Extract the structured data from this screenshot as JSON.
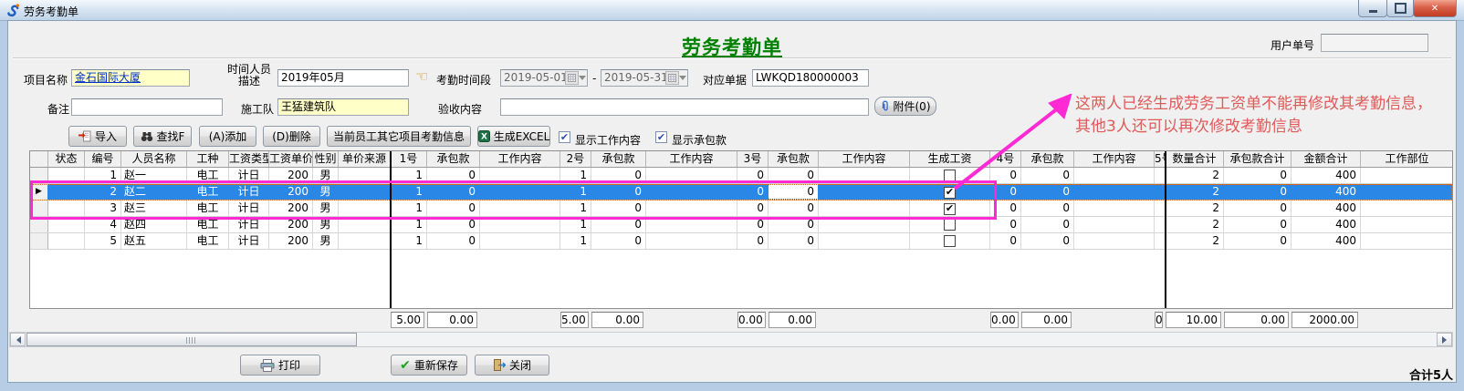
{
  "window": {
    "title": "劳务考勤单"
  },
  "header": {
    "page_title": "劳务考勤单",
    "user_no_label": "用户单号",
    "user_no_value": ""
  },
  "form": {
    "project_label": "项目名称",
    "project_value": "金石国际大厦",
    "time_desc_label_line1": "时间人员",
    "time_desc_label_line2": "描述",
    "time_desc_value": "2019年05月",
    "period_label": "考勤时间段",
    "period_start": "2019-05-01",
    "period_sep": "-",
    "period_end": "2019-05-31",
    "doc_label": "对应单据",
    "doc_value": "LWKQD180000003",
    "remark_label": "备注",
    "remark_value": "",
    "team_label": "施工队",
    "team_value": "王猛建筑队",
    "accept_label": "验收内容",
    "accept_value": "",
    "attach_label": "附件(0)"
  },
  "toolbar": {
    "import_label": "导入",
    "find_label": "查找F",
    "add_label": "(A)添加",
    "delete_label": "(D)删除",
    "other_projects_label": "当前员工其它项目考勤信息",
    "excel_label": "生成EXCEL",
    "show_work_label": "显示工作内容",
    "show_work_checked": true,
    "show_contract_label": "显示承包款",
    "show_contract_checked": true,
    "check_glyph": "✔"
  },
  "grid": {
    "columns": [
      "",
      "状态",
      "编号",
      "人员名称",
      "工种",
      "工资类型",
      "工资单价",
      "性别",
      "单价来源",
      "1号",
      "承包款",
      "工作内容",
      "2号",
      "承包款",
      "工作内容",
      "3号",
      "承包款",
      "工作内容",
      "生成工资",
      "4号",
      "承包款",
      "工作内容",
      "5号",
      "数量合计",
      "承包款合计",
      "金额合计",
      "工作部位"
    ],
    "rows": [
      {
        "cells": [
          "",
          "1",
          "赵一",
          "电工",
          "计日",
          "200",
          "男",
          "",
          "1",
          "0",
          "",
          "1",
          "0",
          "",
          "0",
          "0",
          "",
          "",
          "0",
          "0",
          "",
          "",
          "2",
          "0",
          "400",
          ""
        ],
        "payroll_generated": false
      },
      {
        "cells": [
          "",
          "2",
          "赵二",
          "电工",
          "计日",
          "200",
          "男",
          "",
          "1",
          "0",
          "",
          "1",
          "0",
          "",
          "0",
          "0",
          "",
          "",
          "0",
          "0",
          "",
          "",
          "2",
          "0",
          "400",
          ""
        ],
        "payroll_generated": true
      },
      {
        "cells": [
          "",
          "3",
          "赵三",
          "电工",
          "计日",
          "200",
          "男",
          "",
          "1",
          "0",
          "",
          "1",
          "0",
          "",
          "0",
          "0",
          "",
          "",
          "0",
          "0",
          "",
          "",
          "2",
          "0",
          "400",
          ""
        ],
        "payroll_generated": true
      },
      {
        "cells": [
          "",
          "4",
          "赵四",
          "电工",
          "计日",
          "200",
          "男",
          "",
          "1",
          "0",
          "",
          "1",
          "0",
          "",
          "0",
          "0",
          "",
          "",
          "0",
          "0",
          "",
          "",
          "2",
          "0",
          "400",
          ""
        ],
        "payroll_generated": false
      },
      {
        "cells": [
          "",
          "5",
          "赵五",
          "电工",
          "计日",
          "200",
          "男",
          "",
          "1",
          "0",
          "",
          "1",
          "0",
          "",
          "0",
          "0",
          "",
          "",
          "0",
          "0",
          "",
          "",
          "2",
          "0",
          "400",
          ""
        ],
        "payroll_generated": false
      }
    ],
    "selected_row": 1,
    "editing_cell": {
      "row": 1,
      "col": 16
    },
    "marker_glyph": "▶",
    "check_glyph": "✔"
  },
  "totals": [
    {
      "col": 9,
      "value": "5.00"
    },
    {
      "col": 10,
      "value": "0.00"
    },
    {
      "col": 12,
      "value": "5.00"
    },
    {
      "col": 13,
      "value": "0.00"
    },
    {
      "col": 15,
      "value": "0.00"
    },
    {
      "col": 16,
      "value": "0.00"
    },
    {
      "col": 19,
      "value": "0.00"
    },
    {
      "col": 20,
      "value": "0.00"
    },
    {
      "col": 22,
      "value": "0"
    },
    {
      "col": 23,
      "value": "10.00"
    },
    {
      "col": 24,
      "value": "0.00"
    },
    {
      "col": 25,
      "value": "2000.00"
    }
  ],
  "footer": {
    "print_label": "打印",
    "resave_label": "重新保存",
    "close_label": "关闭",
    "total_people": "合计5人"
  },
  "annotation": {
    "line1": "这两人已经生成劳务工资单不能再修改其考勤信息，",
    "line2": "其他3人还可以再次修改考勤信息",
    "highlight_color": "#ff2ad4",
    "text_color": "#e05a5a"
  }
}
